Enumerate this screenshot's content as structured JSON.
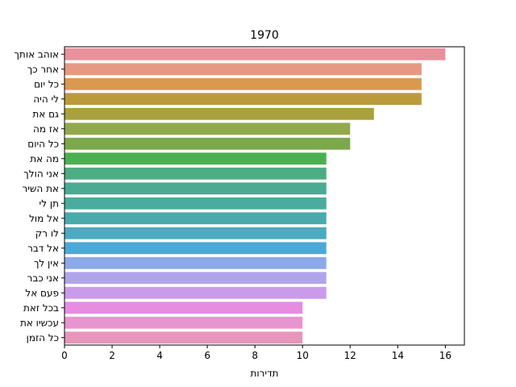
{
  "chart_data": {
    "type": "bar",
    "orientation": "horizontal",
    "title": "1970",
    "xlabel": "תדירות",
    "ylabel": "",
    "xlim": [
      0,
      16.8
    ],
    "xticks": [
      0,
      2,
      4,
      6,
      8,
      10,
      12,
      14,
      16
    ],
    "grid": false,
    "categories": [
      "אוהב אותך",
      "אחר כך",
      "כל יום",
      "לי היה",
      "גם את",
      "אז מה",
      "כל היום",
      "מה את",
      "אני הולך",
      "את השיר",
      "תן לי",
      "אל מול",
      "לו רק",
      "אל דבר",
      "אין לך",
      "אני כבר",
      "פעם אל",
      "בכל זאת",
      "עכשיו את",
      "כל הזמן"
    ],
    "values": [
      16,
      15,
      15,
      15,
      13,
      12,
      12,
      11,
      11,
      11,
      11,
      11,
      11,
      11,
      11,
      11,
      11,
      10,
      10,
      10
    ],
    "colors": [
      "#e8919b",
      "#e79883",
      "#d99a50",
      "#bb9a3c",
      "#a9a03e",
      "#91a94a",
      "#7ba84a",
      "#4caf4f",
      "#4cad82",
      "#4aab92",
      "#4aab9e",
      "#4aaaab",
      "#4daac0",
      "#4ea7d6",
      "#8ca9e8",
      "#b1a5ea",
      "#c99bea",
      "#e68de0",
      "#e895cf",
      "#e895bb"
    ]
  }
}
